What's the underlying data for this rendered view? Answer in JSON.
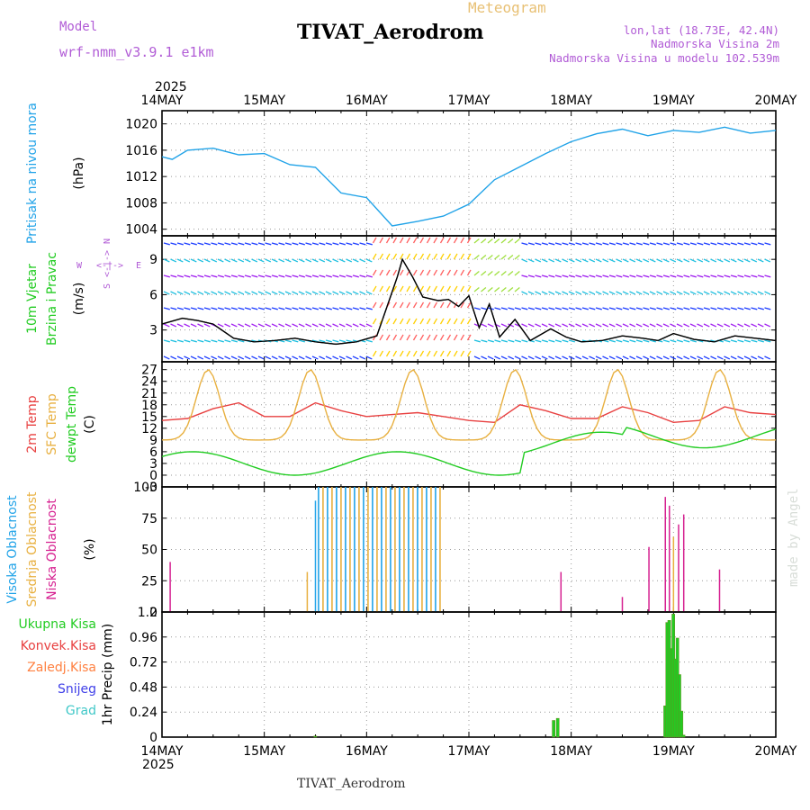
{
  "header": {
    "model_label": "Model",
    "model_name": "wrf-nmm_v3.9.1 e1km",
    "product": "Meteogram",
    "station": "TIVAT_Aerodrom",
    "lonlat": "lon,lat (18.73E, 42.4N)",
    "elevation": "Nadmorska Visina 2m",
    "model_elevation": "Nadmorska Visina u modelu 102.539m",
    "credit": "made by Angel",
    "footer": "TIVAT_Aerodrom",
    "colors": {
      "model": "#b15cd6",
      "product": "#e8c074",
      "info": "#b15cd6",
      "credit": "#d8ddd8"
    }
  },
  "time_axis": {
    "year": "2025",
    "dates": [
      "14MAY",
      "15MAY",
      "16MAY",
      "17MAY",
      "18MAY",
      "19MAY",
      "20MAY"
    ]
  },
  "chart_data": [
    {
      "type": "line",
      "panel": "pressure",
      "ylabel": [
        "Pritisak na nivou mora",
        "(hPa)"
      ],
      "ylabel_colors": [
        "#21a3e8",
        "#000000"
      ],
      "ylim": [
        1003,
        1022
      ],
      "yticks": [
        "1004",
        "1008",
        "1012",
        "1016",
        "1020"
      ],
      "grid": true,
      "x": [
        0,
        0.1,
        0.25,
        0.5,
        0.75,
        1.0,
        1.25,
        1.5,
        1.75,
        2.0,
        2.25,
        2.5,
        2.75,
        3.0,
        3.25,
        3.5,
        3.75,
        4.0,
        4.25,
        4.5,
        4.75,
        5.0,
        5.25,
        5.5,
        5.75,
        6.0
      ],
      "series": [
        {
          "color": "#21a3e8",
          "values": [
            1015,
            1014.6,
            1016,
            1016.3,
            1015.3,
            1015.5,
            1013.8,
            1013.4,
            1009.5,
            1008.8,
            1004.5,
            1005.2,
            1006.0,
            1007.8,
            1011.5,
            1013.5,
            1015.5,
            1017.3,
            1018.5,
            1019.2,
            1018.2,
            1019,
            1018.7,
            1019.5,
            1018.6,
            1019
          ]
        }
      ]
    },
    {
      "type": "line",
      "panel": "wind",
      "ylabel": [
        "10m Vjetar",
        "Brzina i Pravac",
        "(m/s)"
      ],
      "ylabel_colors": [
        "#22cc22",
        "#22cc22",
        "#000000"
      ],
      "compass": {
        "north": "N",
        "south": "S",
        "east": "E",
        "west": "W"
      },
      "ylim": [
        0.3,
        11
      ],
      "yticks": [
        "3",
        "6",
        "9"
      ],
      "grid": true,
      "x": [
        0,
        0.2,
        0.35,
        0.5,
        0.7,
        0.9,
        1.1,
        1.3,
        1.5,
        1.7,
        1.9,
        2.1,
        2.2,
        2.3,
        2.35,
        2.45,
        2.55,
        2.7,
        2.8,
        2.9,
        3.0,
        3.1,
        3.2,
        3.3,
        3.45,
        3.6,
        3.8,
        3.95,
        4.1,
        4.3,
        4.5,
        4.7,
        4.85,
        5.0,
        5.2,
        5.4,
        5.6,
        5.8,
        6.0
      ],
      "series": [
        {
          "name": "mean",
          "color": "#000000",
          "values": [
            3.5,
            4.0,
            3.8,
            3.5,
            2.3,
            2.0,
            2.1,
            2.3,
            2.0,
            1.8,
            2.0,
            2.5,
            5.0,
            7.5,
            9.0,
            7.5,
            5.8,
            5.5,
            5.6,
            5.0,
            5.9,
            3.2,
            5.2,
            2.4,
            3.9,
            2.1,
            3.1,
            2.4,
            2.0,
            2.1,
            2.5,
            2.3,
            2.1,
            2.7,
            2.2,
            2.0,
            2.5,
            2.3,
            2.1
          ]
        }
      ]
    },
    {
      "type": "line",
      "panel": "temperature",
      "ylabel": [
        "2m Temp",
        "SFC Temp",
        "dewpt Temp",
        "(C)"
      ],
      "ylabel_colors": [
        "#e84040",
        "#e8b040",
        "#22cc22",
        "#000000"
      ],
      "ylim": [
        -3,
        29
      ],
      "yticks": [
        "-3",
        "0",
        "3",
        "6",
        "9",
        "12",
        "15",
        "18",
        "21",
        "24",
        "27"
      ],
      "grid": true,
      "x": [
        0,
        0.25,
        0.5,
        0.75,
        1.0,
        1.25,
        1.5,
        1.75,
        2.0,
        2.25,
        2.5,
        2.75,
        3.0,
        3.25,
        3.5,
        3.75,
        4.0,
        4.25,
        4.5,
        4.75,
        5.0,
        5.25,
        5.5,
        5.75,
        6.0
      ],
      "series": [
        {
          "name": "2m Temp",
          "color": "#e84040",
          "values": [
            14,
            14.5,
            17,
            18.5,
            15,
            15,
            18.5,
            16.5,
            15,
            15.5,
            16,
            15,
            14,
            13.5,
            18,
            16.5,
            14.5,
            14.5,
            17.5,
            16,
            13.5,
            14,
            17.5,
            16,
            15.5
          ]
        }
      ]
    },
    {
      "type": "bar",
      "panel": "cloud",
      "ylabel": [
        "Visoka Oblacnost",
        "Srednja Oblacnost",
        "Niska Oblacnost",
        "(%)"
      ],
      "ylabel_colors": [
        "#21a3e8",
        "#e8b040",
        "#d62090",
        "#000000"
      ],
      "ylim": [
        0,
        100
      ],
      "yticks": [
        "0",
        "25",
        "50",
        "75",
        "100"
      ],
      "grid": true
    },
    {
      "type": "bar",
      "panel": "precip",
      "ylabel": [
        "Ukupna Kisa",
        "Konvek.Kisa",
        "Zaledj.Kisa",
        "Snijeg",
        "Grad",
        "1hr Precip (mm)"
      ],
      "ylabel_colors": [
        "#22cc22",
        "#e84040",
        "#ff8040",
        "#4040e8",
        "#40c8c8",
        "#000000"
      ],
      "ylim": [
        0,
        1.2
      ],
      "yticks": [
        "0",
        "0.24",
        "0.48",
        "0.72",
        "0.96",
        "1.2"
      ],
      "grid": true,
      "x": [
        1.5,
        3.83,
        3.87,
        4.92,
        4.94,
        4.96,
        4.98,
        5.0,
        5.02,
        5.04,
        5.06,
        5.08,
        5.1
      ],
      "values": [
        0.01,
        0.16,
        0.18,
        0.3,
        1.1,
        1.12,
        0.85,
        1.18,
        0.75,
        0.95,
        0.6,
        0.25,
        0.02
      ]
    }
  ]
}
